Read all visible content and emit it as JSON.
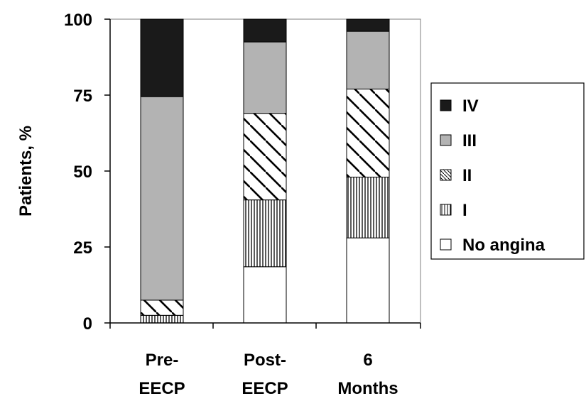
{
  "chart_data": {
    "type": "bar",
    "stacked": true,
    "categories": [
      [
        "Pre-",
        "EECP"
      ],
      [
        "Post-",
        "EECP"
      ],
      [
        "6",
        "Months"
      ]
    ],
    "series": [
      {
        "name": "No angina",
        "values": [
          0,
          18.5,
          28
        ],
        "fill": "#ffffff",
        "pattern": "none"
      },
      {
        "name": "I",
        "values": [
          2.5,
          22,
          20
        ],
        "fill": "#ffffff",
        "pattern": "vertical"
      },
      {
        "name": "II",
        "values": [
          5,
          28.5,
          29
        ],
        "fill": "#ffffff",
        "pattern": "diagonal"
      },
      {
        "name": "III",
        "values": [
          67,
          23.5,
          19
        ],
        "fill": "#b3b3b3",
        "pattern": "none"
      },
      {
        "name": "IV",
        "values": [
          25.5,
          7.5,
          4
        ],
        "fill": "#1a1a1a",
        "pattern": "none"
      }
    ],
    "legend_order": [
      "IV",
      "III",
      "II",
      "I",
      "No angina"
    ],
    "legend_position": "right",
    "title": "",
    "xlabel": "",
    "ylabel": "Patients, %",
    "ylim": [
      0,
      100
    ],
    "yticks": [
      0,
      25,
      50,
      75,
      100
    ],
    "grid": false
  }
}
